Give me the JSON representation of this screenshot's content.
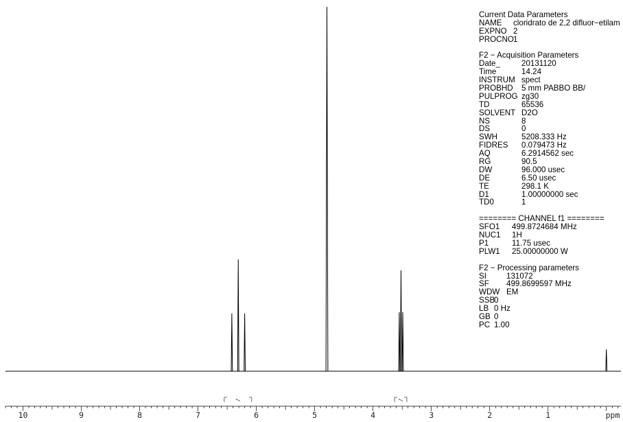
{
  "chart_data": {
    "type": "line",
    "xlabel": "",
    "xunit_label": "ppm",
    "xlim": [
      10.3,
      -0.25
    ],
    "x_ticks": [
      "10",
      "9",
      "8",
      "7",
      "6",
      "5",
      "4",
      "3",
      "2",
      "1",
      "ppm"
    ],
    "peaks": [
      {
        "ppm": 6.42,
        "rel_height": 0.159
      },
      {
        "ppm": 6.31,
        "rel_height": 0.307
      },
      {
        "ppm": 6.2,
        "rel_height": 0.159
      },
      {
        "ppm": 4.79,
        "rel_height": 1.0
      },
      {
        "ppm": 3.55,
        "rel_height": 0.162
      },
      {
        "ppm": 3.52,
        "rel_height": 0.277
      },
      {
        "ppm": 3.49,
        "rel_height": 0.162
      },
      {
        "ppm": 0.0,
        "rel_height": 0.06
      }
    ],
    "integrals": [
      {
        "from_ppm": 6.55,
        "to_ppm": 6.08,
        "label": ""
      },
      {
        "from_ppm": 3.63,
        "to_ppm": 3.42,
        "label": ""
      }
    ]
  },
  "params": {
    "sections": [
      {
        "header": "Current Data Parameters",
        "rows": [
          {
            "key": "NAME",
            "value": "cloridrato de 2,2 difluor−etilam"
          },
          {
            "key": "EXPNO",
            "value": "2"
          },
          {
            "key": "PROCNO",
            "value": "1"
          }
        ]
      },
      {
        "header": "F2 − Acquisition Parameters",
        "rows": [
          {
            "key": "Date_",
            "value": "20131120"
          },
          {
            "key": "Time",
            "value": "14.24"
          },
          {
            "key": "INSTRUM",
            "value": "spect"
          },
          {
            "key": "PROBHD",
            "value": "5 mm PABBO BB/"
          },
          {
            "key": "PULPROG",
            "value": "zg30"
          },
          {
            "key": "TD",
            "value": "65536"
          },
          {
            "key": "SOLVENT",
            "value": "D2O"
          },
          {
            "key": "NS",
            "value": "8"
          },
          {
            "key": "DS",
            "value": "0"
          },
          {
            "key": "SWH",
            "value": "5208.333 Hz"
          },
          {
            "key": "FIDRES",
            "value": "0.079473 Hz"
          },
          {
            "key": "AQ",
            "value": "6.2914562 sec"
          },
          {
            "key": "RG",
            "value": "90.5"
          },
          {
            "key": "DW",
            "value": "96.000 usec"
          },
          {
            "key": "DE",
            "value": "6.50 usec"
          },
          {
            "key": "TE",
            "value": "298.1 K"
          },
          {
            "key": "D1",
            "value": "1.00000000 sec"
          },
          {
            "key": "TD0",
            "value": "1"
          }
        ]
      },
      {
        "header": "======== CHANNEL f1 ========",
        "rows": [
          {
            "key": "SFO1",
            "value": "499.8724684 MHz"
          },
          {
            "key": "NUC1",
            "value": "1H"
          },
          {
            "key": "P1",
            "value": "11.75 usec"
          },
          {
            "key": "PLW1",
            "value": "25.00000000 W"
          }
        ]
      },
      {
        "header": "F2 − Processing parameters",
        "rows": [
          {
            "key": "SI",
            "value": "131072"
          },
          {
            "key": "SF",
            "value": "499.8699597 MHz"
          },
          {
            "key": "WDW",
            "value": "EM"
          },
          {
            "key": "SSB",
            "value": "0"
          },
          {
            "key": "LB",
            "value": "0 Hz"
          },
          {
            "key": "GB",
            "value": "0"
          },
          {
            "key": "PC",
            "value": "1.00"
          }
        ]
      }
    ]
  }
}
